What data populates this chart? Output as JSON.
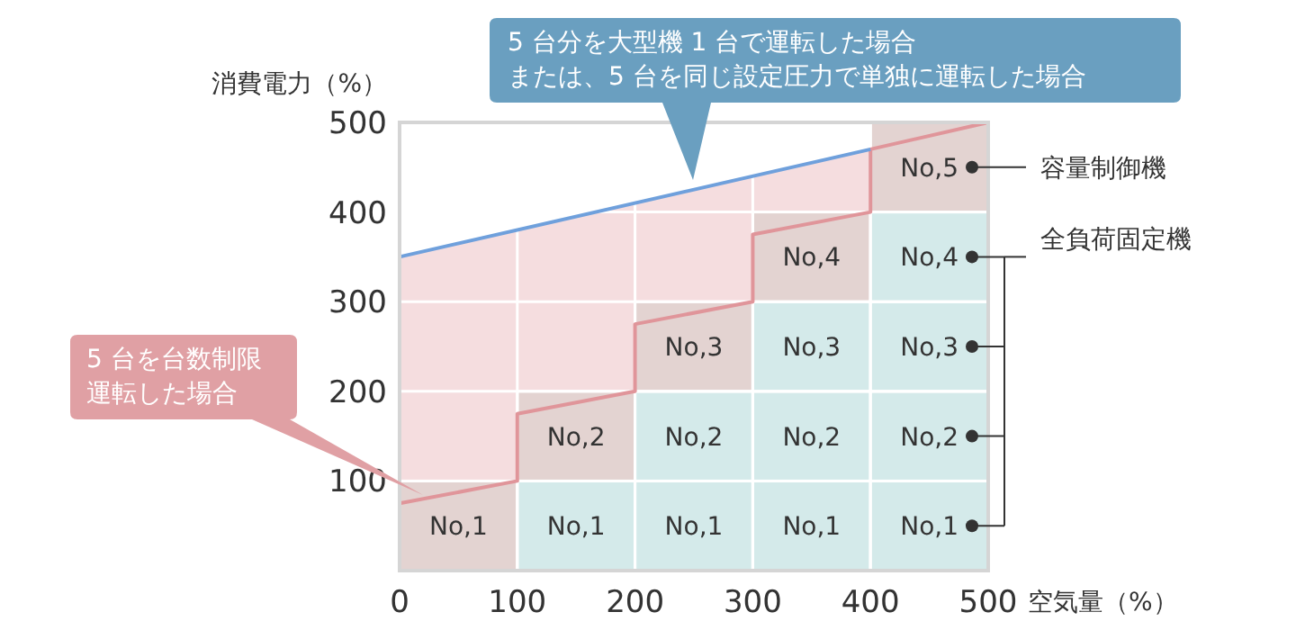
{
  "chart_data": {
    "type": "bar",
    "stacked": true,
    "xlabel": "空気量（%）",
    "ylabel": "消費電力（%）",
    "xlim": [
      0,
      500
    ],
    "ylim": [
      0,
      500
    ],
    "xticks": [
      0,
      100,
      200,
      300,
      400,
      500
    ],
    "yticks": [
      100,
      200,
      300,
      400,
      500
    ],
    "grid": true,
    "series": [
      {
        "name": "No,1",
        "x": [
          50,
          150,
          250,
          350,
          450
        ],
        "values": [
          100,
          100,
          100,
          100,
          100
        ],
        "colors": [
          "#e3d3d1",
          "#d4eaea",
          "#d4eaea",
          "#d4eaea",
          "#d4eaea"
        ]
      },
      {
        "name": "No,2",
        "x": [
          150,
          250,
          350,
          450
        ],
        "values": [
          100,
          100,
          100,
          100
        ],
        "colors": [
          "#e3d3d1",
          "#d4eaea",
          "#d4eaea",
          "#d4eaea"
        ]
      },
      {
        "name": "No,3",
        "x": [
          250,
          350,
          450
        ],
        "values": [
          100,
          100,
          100
        ],
        "colors": [
          "#e3d3d1",
          "#d4eaea",
          "#d4eaea"
        ]
      },
      {
        "name": "No,4",
        "x": [
          350,
          450
        ],
        "values": [
          100,
          100
        ],
        "colors": [
          "#e3d3d1",
          "#d4eaea"
        ]
      },
      {
        "name": "No,5",
        "x": [
          450
        ],
        "values": [
          100
        ],
        "colors": [
          "#e3d3d1"
        ]
      },
      {
        "type": "line",
        "color": "#e0959a",
        "x": [
          0,
          100,
          100,
          200,
          200,
          300,
          300,
          400,
          400,
          500
        ],
        "values": [
          75,
          100,
          175,
          200,
          275,
          300,
          375,
          400,
          470,
          500
        ],
        "lower": [
          75,
          100,
          175,
          200,
          275,
          300,
          375,
          400,
          470,
          500
        ],
        "upper": [
          350,
          380,
          380,
          410,
          410,
          440,
          440,
          470,
          470,
          500
        ]
      },
      {
        "type": "line",
        "color": "#6fa0dc",
        "x": [
          0,
          400
        ],
        "values": [
          350,
          470
        ]
      }
    ],
    "annotations": [
      "5 台分を大型機 1 台で運転した場合",
      "または、5 台を同じ設定圧力で単独に運転した場合",
      "5 台を台数制限",
      "運転した場合",
      "容量制御機",
      "全負荷固定機"
    ]
  }
}
